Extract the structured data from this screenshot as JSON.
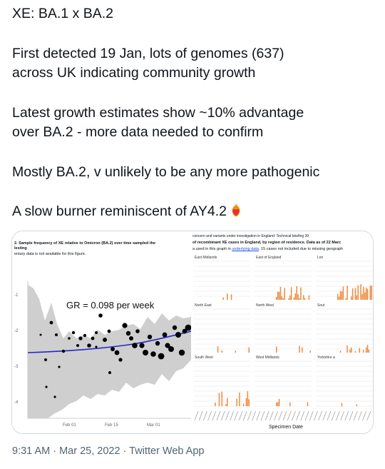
{
  "tweet": {
    "lines": [
      "XE: BA.1 x BA.2",
      "First detected 19 Jan, lots of genomes (637)",
      "across UK indicating community growth",
      "Latest growth estimates show ~10% advantage",
      "over BA.2 - more data needed to confirm",
      "Mostly BA.2, v unlikely to be any more pathogenic",
      "A slow burner reminiscent of AY4.2"
    ],
    "emoji_icon": "flaming-heart-icon"
  },
  "media": {
    "left_figure": {
      "caption_line1": "2. Sample frequency of XE relative to Omicron (BA.2) over time sampled the",
      "caption_line2": "lesting",
      "caption_line3": "entary data is not available for this figure.",
      "annotation": "GR = 0.098 per week",
      "y_ticks": [
        "-1",
        "-2",
        "-3",
        "-4"
      ],
      "x_ticks": [
        "Feb 01",
        "Feb 15",
        "Mar 01"
      ],
      "colors": {
        "fit_line": "#2727c8",
        "band": "#c8c8c8",
        "points": "#000000"
      }
    },
    "right_figure": {
      "caption_line1": "concern and variants under investigation in England: Technical briefing 39",
      "caption_line2": "of recombinant XE cases in England, by region of residence. Data as of 22 Marc",
      "caption_line3_prefix": "a used in this graph in ",
      "caption_link": "underlying data",
      "caption_line3_suffix": ". 15 cases not included due to missing geograph",
      "regions": [
        "East Midlands",
        "East of England",
        "Lon",
        "North East",
        "North West",
        "Sout",
        "South West",
        "West Midlands",
        "Yorkshire a"
      ],
      "x_axis_label": "Specimen Date",
      "colors": {
        "bars": "#f08a3c",
        "link": "#1d4fd8"
      }
    }
  },
  "meta": {
    "time": "9:31 AM",
    "separator1": " · ",
    "date": "Mar 25, 2022",
    "separator2": " · ",
    "source": "Twitter Web App"
  }
}
